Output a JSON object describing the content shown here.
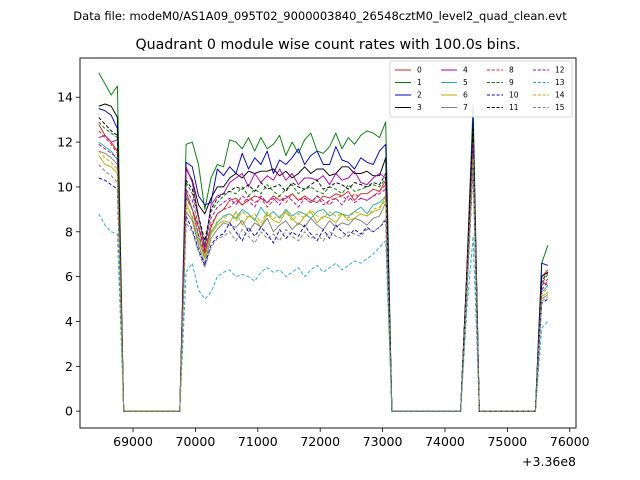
{
  "chart_data": {
    "type": "line",
    "suptitle": "Data file: modeM0/AS1A09_095T02_9000003840_26548cztM0_level2_quad_clean.evt",
    "title": "Quadrant 0 module wise count rates with 100.0s bins.",
    "xlabel": "",
    "ylabel": "",
    "x_offset_label": "+3.36e8",
    "xlim": [
      68150,
      76100
    ],
    "ylim": [
      -0.75,
      15.75
    ],
    "xticks": [
      69000,
      70000,
      71000,
      72000,
      73000,
      74000,
      75000,
      76000
    ],
    "xtick_labels": [
      "69000",
      "70000",
      "71000",
      "72000",
      "73000",
      "74000",
      "75000",
      "76000"
    ],
    "yticks": [
      0,
      2,
      4,
      6,
      8,
      10,
      12,
      14
    ],
    "ytick_labels": [
      "0",
      "2",
      "4",
      "6",
      "8",
      "10",
      "12",
      "14"
    ],
    "legend": {
      "position": "top-right",
      "columns": 4
    },
    "segments": [
      {
        "start": 68450,
        "step": 100,
        "count": 4,
        "active": true
      },
      {
        "start": 68850,
        "step": 100,
        "count": 10,
        "active": false
      },
      {
        "start": 69850,
        "step": 100,
        "count": 33,
        "active": true
      },
      {
        "start": 73150,
        "step": 100,
        "count": 12,
        "active": false
      },
      {
        "start": 74350,
        "step": 100,
        "count": 2,
        "active": true
      },
      {
        "start": 74550,
        "step": 100,
        "count": 10,
        "active": false
      },
      {
        "start": 75550,
        "step": 100,
        "count": 2,
        "active": true
      }
    ],
    "series": [
      {
        "name": "0",
        "color": "#d62020",
        "dashed": false,
        "first": [
          12.8,
          12.3,
          12.0,
          11.6
        ],
        "main": [
          9.8,
          9.0,
          8.2,
          7.1,
          8.2,
          8.8,
          9.0,
          9.4,
          9.5,
          9.2,
          9.4,
          9.6,
          9.5,
          9.3,
          9.6,
          9.4,
          9.5,
          9.7,
          9.4,
          9.6,
          9.4,
          9.3,
          9.6,
          9.5,
          9.7,
          9.6,
          9.8,
          9.4,
          9.7,
          9.7,
          9.9,
          9.8,
          10.3
        ],
        "peak": [
          6.0,
          12.0
        ],
        "last": [
          6.0,
          6.3
        ]
      },
      {
        "name": "1",
        "color": "#008000",
        "dashed": false,
        "first": [
          15.1,
          14.6,
          14.1,
          14.5
        ],
        "main": [
          11.9,
          12.0,
          11.0,
          9.0,
          10.4,
          11.0,
          10.9,
          12.1,
          12.0,
          11.7,
          12.2,
          11.6,
          12.2,
          11.7,
          11.9,
          12.3,
          11.4,
          12.0,
          11.5,
          12.1,
          12.4,
          11.6,
          11.5,
          11.8,
          12.4,
          11.7,
          12.2,
          11.9,
          12.3,
          12.5,
          12.4,
          12.2,
          12.9
        ],
        "peak": [
          6.3,
          13.7
        ],
        "last": [
          6.6,
          7.4
        ]
      },
      {
        "name": "2",
        "color": "#0000cc",
        "dashed": false,
        "first": [
          13.5,
          13.4,
          13.2,
          12.6
        ],
        "main": [
          11.1,
          10.9,
          9.6,
          9.2,
          9.3,
          10.8,
          10.5,
          10.9,
          10.6,
          11.5,
          10.8,
          11.3,
          11.0,
          11.6,
          10.6,
          11.2,
          11.0,
          11.3,
          11.7,
          11.0,
          11.4,
          11.6,
          11.0,
          11.0,
          11.8,
          11.2,
          11.1,
          10.8,
          11.3,
          11.1,
          11.0,
          11.6,
          11.9
        ],
        "peak": [
          6.2,
          13.1
        ],
        "last": [
          6.6,
          6.5
        ]
      },
      {
        "name": "3",
        "color": "#000000",
        "dashed": false,
        "first": [
          13.6,
          13.7,
          13.6,
          13.1
        ],
        "main": [
          10.8,
          10.3,
          9.2,
          8.8,
          9.5,
          10.0,
          10.0,
          10.4,
          10.6,
          10.4,
          10.7,
          10.6,
          10.7,
          10.7,
          10.8,
          10.5,
          10.7,
          10.4,
          10.6,
          10.9,
          10.6,
          10.8,
          10.8,
          10.5,
          10.6,
          10.9,
          10.9,
          10.6,
          10.6,
          10.7,
          10.5,
          10.5,
          11.3
        ],
        "peak": [
          6.1,
          12.6
        ],
        "last": [
          6.0,
          6.2
        ]
      },
      {
        "name": "4",
        "color": "#b000b0",
        "dashed": false,
        "first": [
          12.2,
          12.3,
          12.0,
          12.1
        ],
        "main": [
          10.9,
          10.2,
          8.7,
          7.3,
          9.2,
          9.6,
          9.7,
          10.2,
          10.4,
          10.6,
          10.0,
          10.6,
          10.2,
          10.5,
          10.3,
          10.8,
          10.3,
          10.6,
          10.1,
          10.4,
          10.4,
          10.3,
          10.5,
          10.1,
          10.6,
          10.3,
          10.4,
          10.7,
          10.2,
          10.1,
          10.4,
          10.6,
          10.4
        ],
        "peak": [
          5.9,
          12.2
        ],
        "last": [
          5.8,
          5.6
        ]
      },
      {
        "name": "5",
        "color": "#20b0a0",
        "dashed": false,
        "first": [
          12.0,
          11.8,
          11.6,
          11.2
        ],
        "main": [
          9.6,
          9.0,
          7.8,
          6.9,
          8.0,
          8.4,
          8.7,
          8.8,
          8.6,
          9.0,
          8.8,
          8.5,
          9.1,
          8.7,
          8.9,
          8.6,
          9.0,
          8.7,
          8.9,
          8.8,
          8.6,
          8.9,
          9.0,
          8.7,
          8.9,
          8.8,
          8.7,
          8.9,
          9.1,
          8.8,
          9.2,
          9.3,
          9.6
        ],
        "peak": [
          5.5,
          11.8
        ],
        "last": [
          5.3,
          5.6
        ]
      },
      {
        "name": "6",
        "color": "#b8b000",
        "dashed": false,
        "first": [
          11.4,
          11.0,
          10.9,
          10.6
        ],
        "main": [
          9.3,
          8.6,
          7.6,
          6.8,
          7.9,
          8.3,
          8.5,
          8.4,
          8.9,
          8.3,
          8.7,
          8.6,
          8.2,
          8.8,
          8.5,
          8.4,
          8.9,
          8.6,
          8.3,
          8.7,
          8.9,
          8.4,
          8.7,
          8.6,
          8.4,
          8.8,
          8.5,
          8.6,
          8.8,
          8.7,
          8.9,
          9.0,
          9.6
        ],
        "peak": [
          5.4,
          11.2
        ],
        "last": [
          5.1,
          5.3
        ]
      },
      {
        "name": "7",
        "color": "#7f7f7f",
        "dashed": false,
        "first": [
          11.6,
          11.5,
          11.3,
          11.0
        ],
        "main": [
          8.9,
          8.5,
          7.4,
          6.6,
          7.7,
          8.1,
          8.4,
          8.3,
          8.2,
          8.5,
          8.0,
          8.4,
          8.2,
          8.6,
          8.0,
          8.3,
          8.5,
          8.1,
          8.4,
          8.2,
          8.6,
          8.3,
          8.1,
          8.5,
          8.2,
          8.4,
          8.3,
          8.6,
          8.5,
          8.3,
          8.6,
          8.7,
          9.3
        ],
        "peak": [
          5.3,
          11.4
        ],
        "last": [
          5.0,
          5.2
        ]
      },
      {
        "name": "8",
        "color": "#d62020",
        "dashed": true,
        "first": [
          12.5,
          12.2,
          11.9,
          11.5
        ],
        "main": [
          9.5,
          9.0,
          7.9,
          7.0,
          8.3,
          8.8,
          9.0,
          9.1,
          9.4,
          9.2,
          9.6,
          9.3,
          9.5,
          9.1,
          9.4,
          9.6,
          9.3,
          9.7,
          9.4,
          9.5,
          9.3,
          9.6,
          9.4,
          9.2,
          9.5,
          9.6,
          9.4,
          9.7,
          9.5,
          9.4,
          9.6,
          9.8,
          10.1
        ],
        "peak": [
          5.8,
          12.3
        ],
        "last": [
          5.6,
          5.9
        ]
      },
      {
        "name": "9",
        "color": "#008000",
        "dashed": true,
        "first": [
          12.9,
          12.6,
          12.4,
          12.2
        ],
        "main": [
          10.2,
          9.7,
          8.6,
          7.4,
          8.9,
          9.3,
          9.6,
          9.8,
          9.7,
          10.0,
          9.6,
          9.9,
          9.7,
          10.1,
          9.8,
          9.6,
          9.9,
          10.1,
          9.7,
          9.9,
          10.0,
          9.8,
          9.7,
          10.0,
          9.9,
          9.7,
          10.1,
          9.8,
          9.9,
          10.0,
          10.1,
          10.0,
          10.4
        ],
        "peak": [
          6.0,
          12.5
        ],
        "last": [
          5.7,
          6.1
        ]
      },
      {
        "name": "10",
        "color": "#0000cc",
        "dashed": true,
        "first": [
          10.4,
          10.3,
          10.1,
          9.9
        ],
        "main": [
          8.7,
          8.1,
          7.2,
          6.5,
          7.4,
          7.8,
          7.9,
          8.4,
          8.0,
          7.6,
          8.2,
          7.8,
          8.2,
          7.9,
          7.5,
          8.1,
          7.7,
          8.0,
          7.8,
          8.3,
          7.9,
          7.6,
          8.1,
          7.7,
          8.3,
          8.0,
          7.8,
          8.1,
          7.9,
          8.2,
          8.0,
          8.2,
          8.5
        ],
        "peak": [
          5.1,
          10.9
        ],
        "last": [
          4.8,
          5.0
        ]
      },
      {
        "name": "11",
        "color": "#000000",
        "dashed": true,
        "first": [
          13.1,
          12.8,
          12.5,
          12.3
        ],
        "main": [
          10.3,
          9.9,
          8.7,
          7.6,
          9.0,
          9.5,
          9.7,
          9.8,
          10.0,
          9.9,
          10.1,
          9.8,
          10.2,
          9.9,
          10.0,
          10.1,
          9.8,
          10.2,
          10.0,
          9.9,
          10.1,
          10.3,
          9.9,
          10.0,
          10.2,
          10.1,
          9.9,
          10.2,
          10.1,
          10.0,
          10.2,
          10.1,
          10.6
        ],
        "peak": [
          6.0,
          12.8
        ],
        "last": [
          5.8,
          6.2
        ]
      },
      {
        "name": "12",
        "color": "#b000b0",
        "dashed": true,
        "first": [
          11.9,
          11.7,
          11.5,
          11.3
        ],
        "main": [
          9.9,
          9.4,
          8.3,
          7.2,
          8.6,
          9.1,
          9.3,
          9.5,
          9.2,
          9.6,
          9.4,
          9.1,
          9.6,
          9.3,
          9.5,
          9.2,
          9.6,
          9.4,
          9.1,
          9.5,
          9.3,
          9.6,
          9.2,
          9.4,
          9.5,
          9.2,
          9.6,
          9.3,
          9.5,
          9.4,
          9.6,
          9.7,
          9.9
        ],
        "peak": [
          5.7,
          11.9
        ],
        "last": [
          5.4,
          5.8
        ]
      },
      {
        "name": "13",
        "color": "#20b0c0",
        "dashed": true,
        "first": [
          8.8,
          8.3,
          8.0,
          7.9
        ],
        "main": [
          6.2,
          6.6,
          5.4,
          5.0,
          5.3,
          6.0,
          6.2,
          6.3,
          6.0,
          6.1,
          6.0,
          5.8,
          6.2,
          6.4,
          6.2,
          6.3,
          6.0,
          6.2,
          6.4,
          6.0,
          6.3,
          6.5,
          6.2,
          6.4,
          6.6,
          6.3,
          6.5,
          6.7,
          6.6,
          6.8,
          7.0,
          7.3,
          7.6
        ],
        "peak": [
          4.5,
          7.8
        ],
        "last": [
          3.7,
          4.0
        ]
      },
      {
        "name": "14",
        "color": "#b8b000",
        "dashed": true,
        "first": [
          11.6,
          11.3,
          11.1,
          10.8
        ],
        "main": [
          9.1,
          8.7,
          7.6,
          6.9,
          7.9,
          8.5,
          8.6,
          8.8,
          8.5,
          8.9,
          8.6,
          8.8,
          8.4,
          8.9,
          8.6,
          8.7,
          8.9,
          8.5,
          8.8,
          8.6,
          9.0,
          8.7,
          8.6,
          8.9,
          8.7,
          8.8,
          8.6,
          8.9,
          8.8,
          8.7,
          9.0,
          9.1,
          9.4
        ],
        "peak": [
          5.5,
          11.3
        ],
        "last": [
          5.2,
          5.5
        ]
      },
      {
        "name": "15",
        "color": "#7f7f7f",
        "dashed": true,
        "first": [
          11.0,
          10.7,
          10.5,
          10.2
        ],
        "main": [
          8.4,
          8.0,
          7.1,
          6.4,
          7.3,
          7.7,
          7.8,
          8.0,
          7.6,
          8.1,
          7.8,
          7.5,
          8.0,
          7.7,
          7.9,
          7.6,
          8.1,
          7.8,
          7.6,
          8.0,
          7.7,
          7.9,
          7.6,
          8.0,
          7.8,
          7.7,
          8.0,
          7.9,
          7.8,
          8.1,
          8.0,
          8.2,
          8.6
        ],
        "peak": [
          5.2,
          10.8
        ],
        "last": [
          4.9,
          5.1
        ]
      }
    ]
  }
}
